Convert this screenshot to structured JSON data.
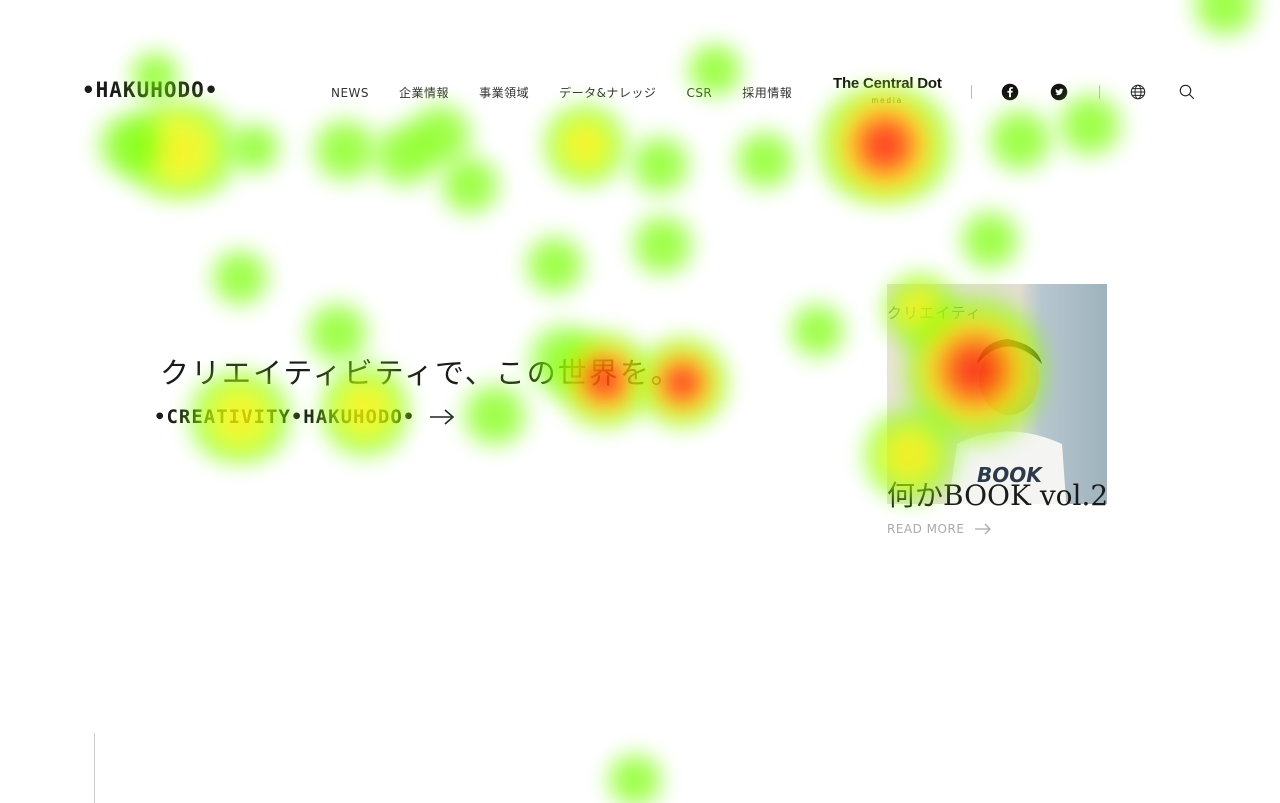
{
  "header": {
    "logo": "•HAKUHODO•",
    "nav": [
      {
        "label": "NEWS"
      },
      {
        "label": "企業情報"
      },
      {
        "label": "事業領域"
      },
      {
        "label": "データ&ナレッジ"
      },
      {
        "label": "CSR"
      },
      {
        "label": "採用情報"
      }
    ],
    "central_dot": {
      "title": "The Central Dot",
      "sub": "media"
    },
    "icons": [
      "facebook-icon",
      "twitter-icon",
      "globe-icon",
      "search-icon"
    ]
  },
  "hero": {
    "copy": "クリエイティビティで、この世界を。",
    "link_label": "•CREATIVITY•HAKUHODO•"
  },
  "card": {
    "tag": "クリエイティ",
    "image_text": "BOOK",
    "title": "何かBOOK vol.2",
    "more": "READ MORE"
  },
  "colors": {
    "text": "#1a1a1a",
    "muted": "#aaaaaa",
    "heat_green": "#78ff00",
    "heat_yellow": "#ffeb00",
    "heat_red": "#ff0000"
  }
}
